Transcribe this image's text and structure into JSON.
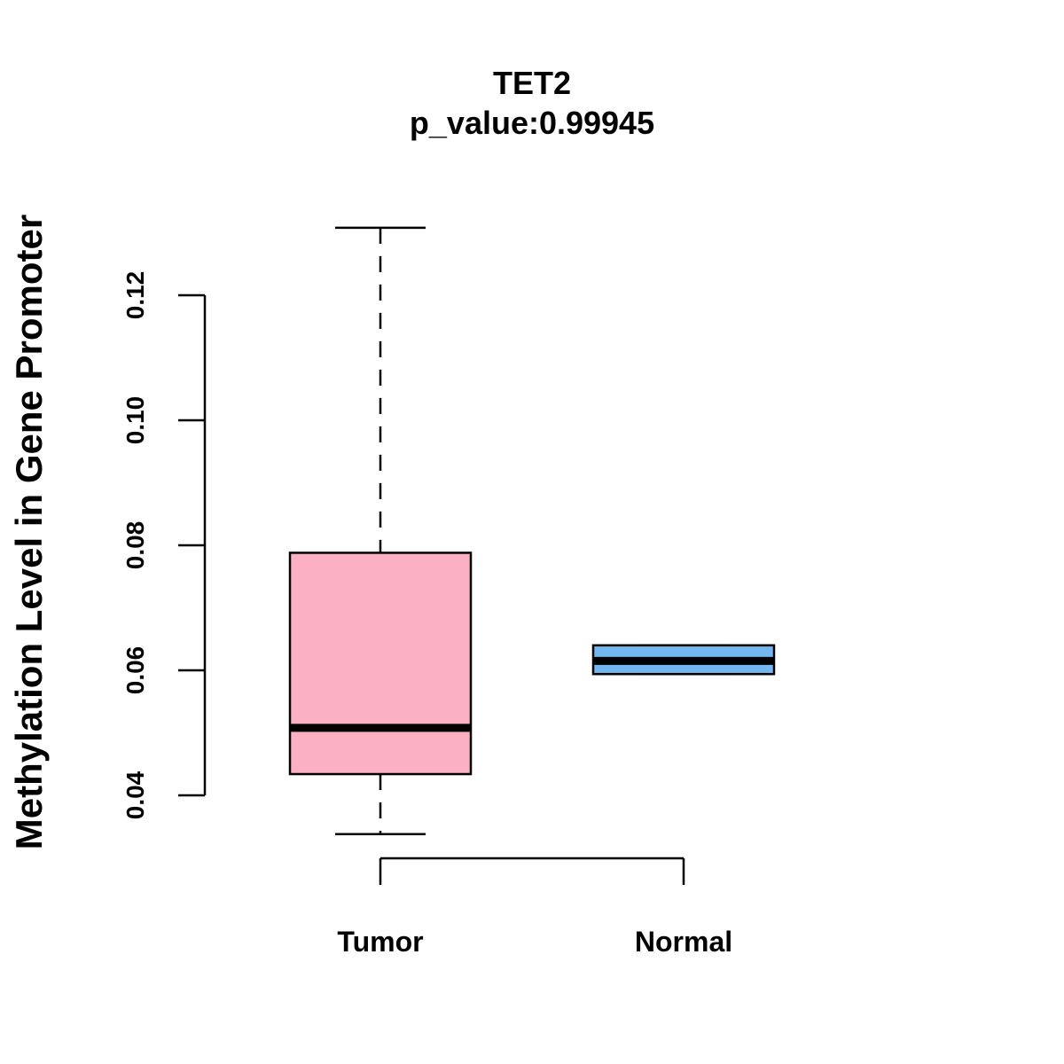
{
  "chart_data": {
    "type": "boxplot",
    "title": "TET2",
    "subtitle": "p_value:0.99945",
    "xlabel": "",
    "ylabel": "Methylation Level in Gene Promoter",
    "ylim": [
      0.04,
      0.12
    ],
    "y_ticks": [
      0.04,
      0.06,
      0.08,
      0.1,
      0.12
    ],
    "y_tick_labels": [
      "0.04",
      "0.06",
      "0.08",
      "0.10",
      "0.12"
    ],
    "categories": [
      "Tumor",
      "Normal"
    ],
    "series": [
      {
        "name": "Tumor",
        "whisker_low": 0.0338,
        "q1": 0.0434,
        "median": 0.0508,
        "q3": 0.0788,
        "whisker_high": 0.1308,
        "color": "#FBB0C3"
      },
      {
        "name": "Normal",
        "whisker_low": 0.0594,
        "q1": 0.0594,
        "median": 0.0615,
        "q3": 0.064,
        "whisker_high": 0.064,
        "color": "#72B7F0"
      }
    ],
    "grid": false,
    "legend": "none"
  }
}
